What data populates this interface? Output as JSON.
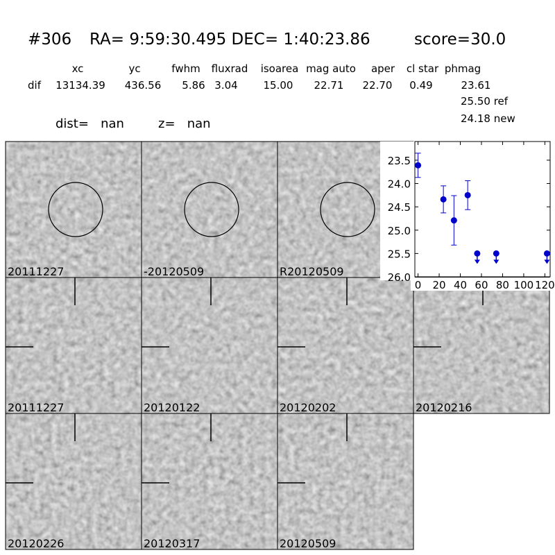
{
  "header": {
    "id": "#306",
    "coords": "RA= 9:59:30.495 DEC= 1:40:23.86",
    "score": "score=30.0"
  },
  "table": {
    "columns": [
      "xc",
      "yc",
      "fwhm",
      "fluxrad",
      "isoarea",
      "mag auto",
      "aper",
      "cl star",
      "phmag"
    ],
    "row_label": "dif",
    "row": [
      "13134.39",
      "436.56",
      "5.86",
      "3.04",
      "15.00",
      "22.71",
      "22.70",
      "0.49",
      "23.61"
    ],
    "extra": [
      "25.50 ref",
      "24.18 new"
    ]
  },
  "dist": "dist=   nan",
  "z": "z=   nan",
  "stamps": [
    {
      "label": "20111227",
      "color": "#000000"
    },
    {
      "label": "-20120509",
      "color": "#000000"
    },
    {
      "label": "R20120509",
      "color": "#000000"
    },
    {
      "label": "20111227",
      "color": "#ff0000"
    },
    {
      "label": "20120122",
      "color": "#000000"
    },
    {
      "label": "20120202",
      "color": "#000000"
    },
    {
      "label": "20120216",
      "color": "#000000"
    },
    {
      "label": "20120226",
      "color": "#000000"
    },
    {
      "label": "20120317",
      "color": "#000000"
    },
    {
      "label": "20120509",
      "color": "#000000"
    }
  ],
  "chart_data": {
    "type": "errorbar",
    "color": "#0000cc",
    "x": [
      0,
      24,
      34,
      47
    ],
    "values": [
      23.61,
      24.34,
      24.79,
      24.25
    ],
    "errors": [
      0.26,
      0.29,
      0.53,
      0.31
    ],
    "upper_limit_x": [
      56,
      74,
      122
    ],
    "upper_limit_values": [
      25.5,
      25.5,
      25.5
    ],
    "xlim": [
      -3,
      125
    ],
    "ylim": [
      26.0,
      23.1
    ],
    "xticks": [
      0,
      20,
      40,
      60,
      80,
      100,
      120
    ],
    "yticks": [
      23.5,
      {
        "value": 24,
        "label": "24.0"
      },
      24.5,
      {
        "value": 25,
        "label": "25.0"
      },
      25.5,
      {
        "value": 26,
        "label": "26.0"
      }
    ]
  }
}
